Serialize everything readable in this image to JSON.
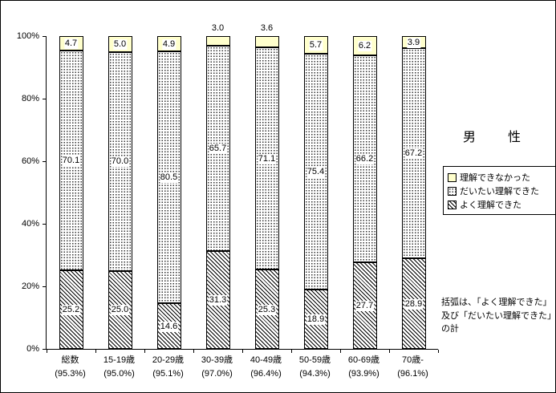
{
  "title": "男　性",
  "note": "括弧は、「よく理解できた」及び「だいたい理解できた」の計",
  "y_axis": {
    "ticks": [
      "0%",
      "20%",
      "40%",
      "60%",
      "80%",
      "100%"
    ]
  },
  "legend": {
    "items": [
      {
        "label": "理解できなかった",
        "pattern": "yellow"
      },
      {
        "label": "だいたい理解できた",
        "pattern": "dots"
      },
      {
        "label": "よく理解できた",
        "pattern": "hatch"
      }
    ]
  },
  "colors": {
    "yellow_fill": "#ffffcc",
    "axis": "#000000",
    "background": "#ffffff"
  },
  "chart_data": {
    "type": "bar",
    "stacked": true,
    "orientation": "vertical",
    "title": "男　性",
    "xlabel": "",
    "ylabel": "",
    "ylim": [
      0,
      100
    ],
    "grid": false,
    "legend_position": "right",
    "categories": [
      "総数",
      "15-19歳",
      "20-29歳",
      "30-39歳",
      "40-49歳",
      "50-59歳",
      "60-69歳",
      "70歳-"
    ],
    "category_sublabels": [
      "(95.3%)",
      "(95.0%)",
      "(95.1%)",
      "(97.0%)",
      "(96.4%)",
      "(94.3%)",
      "(93.9%)",
      "(96.1%)"
    ],
    "series": [
      {
        "name": "よく理解できた",
        "pattern": "hatch",
        "values": [
          25.2,
          25.0,
          14.6,
          31.3,
          25.3,
          18.9,
          27.7,
          28.9
        ]
      },
      {
        "name": "だいたい理解できた",
        "pattern": "dots",
        "values": [
          70.1,
          70.0,
          80.5,
          65.7,
          71.1,
          75.4,
          66.2,
          67.2
        ]
      },
      {
        "name": "理解できなかった",
        "pattern": "yellow",
        "values": [
          4.7,
          5.0,
          4.9,
          3.0,
          3.6,
          5.7,
          6.2,
          3.9
        ]
      }
    ]
  }
}
